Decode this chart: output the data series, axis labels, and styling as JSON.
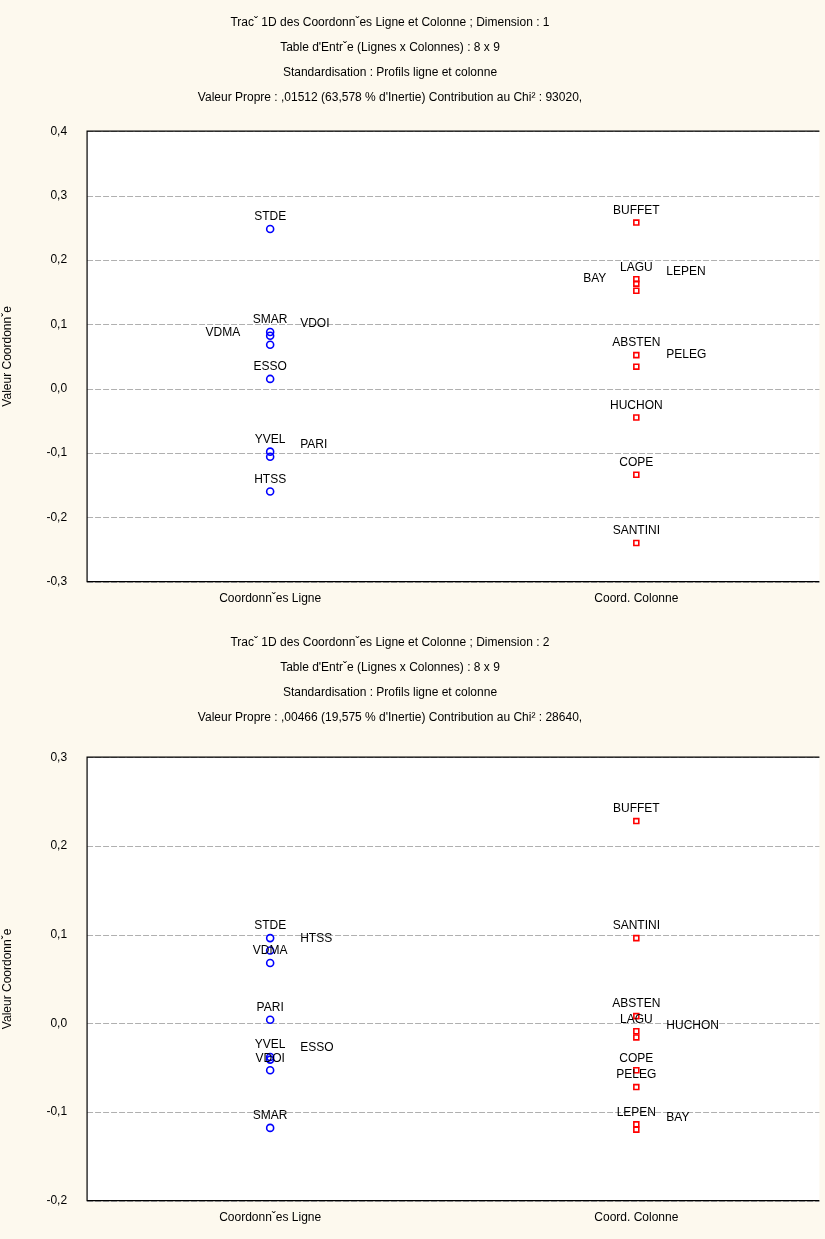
{
  "chart_data": [
    {
      "type": "scatter",
      "title": "Tracˇ 1D des Coordonnˇes Ligne et Colonne ; Dimension :  1",
      "subtitle": "Table d'Entrˇe (Lignes x Colonnes) : 8 x 9\nStandardisation : Profils ligne et colonne\nValeur Propre : ,01512 (63,578  % d'Inertie) Contribution au Chi² : 93020,",
      "ylabel": "Valeur Coordonnˇe",
      "categories": [
        "Coordonnˇes Ligne",
        "Coord. Colonne"
      ],
      "series": [
        {
          "color": "#0000ff",
          "marker": "circle",
          "x": [
            "Coordonnˇes Ligne",
            "Coordonnˇes Ligne",
            "Coordonnˇes Ligne",
            "Coordonnˇes Ligne",
            "Coordonnˇes Ligne",
            "Coordonnˇes Ligne",
            "Coordonnˇes Ligne",
            "Coordonnˇes Ligne"
          ],
          "values": [
            0.248,
            0.088,
            0.082,
            0.068,
            0.015,
            -0.098,
            -0.106,
            -0.16
          ]
        },
        {
          "color": "#ff0000",
          "marker": "square",
          "x": [
            "Coord. Colonne",
            "Coord. Colonne",
            "Coord. Colonne",
            "Coord. Colonne",
            "Coord. Colonne",
            "Coord. Colonne",
            "Coord. Colonne",
            "Coord. Colonne",
            "Coord. Colonne"
          ],
          "values": [
            0.258,
            0.17,
            0.163,
            0.152,
            0.052,
            0.034,
            -0.045,
            -0.134,
            -0.24
          ]
        }
      ],
      "ylim": [
        -0.3,
        0.4
      ],
      "yticks": [
        {
          "value": -0.3,
          "label": "-0,3"
        },
        {
          "value": -0.2,
          "label": "-0,2"
        },
        {
          "value": -0.1,
          "label": "-0,1"
        },
        {
          "value": 0,
          "label": "0,0"
        },
        {
          "value": 0.1,
          "label": "0,1"
        },
        {
          "value": 0.2,
          "label": "0,2"
        },
        {
          "value": 0.3,
          "label": "0,3"
        },
        {
          "value": 0.4,
          "label": "0,4"
        }
      ],
      "grid": "y",
      "legend": false,
      "annotations": [
        {
          "text": "STDE",
          "x": "Coordonnˇes Ligne",
          "y": 0.248
        },
        {
          "text": "SMAR",
          "x": "Coordonnˇes Ligne",
          "y": 0.088
        },
        {
          "text": "VDOI",
          "x": "Coordonnˇes Ligne",
          "y": 0.082
        },
        {
          "text": "VDMA",
          "x": "Coordonnˇes Ligne",
          "y": 0.068
        },
        {
          "text": "ESSO",
          "x": "Coordonnˇes Ligne",
          "y": 0.015
        },
        {
          "text": "YVEL",
          "x": "Coordonnˇes Ligne",
          "y": -0.098
        },
        {
          "text": "PARI",
          "x": "Coordonnˇes Ligne",
          "y": -0.106
        },
        {
          "text": "HTSS",
          "x": "Coordonnˇes Ligne",
          "y": -0.16
        },
        {
          "text": "BUFFET",
          "x": "Coord. Colonne",
          "y": 0.258
        },
        {
          "text": "LAGU",
          "x": "Coord. Colonne",
          "y": 0.17
        },
        {
          "text": "LEPEN",
          "x": "Coord. Colonne",
          "y": 0.163
        },
        {
          "text": "BAY",
          "x": "Coord. Colonne",
          "y": 0.152
        },
        {
          "text": "ABSTEN",
          "x": "Coord. Colonne",
          "y": 0.052
        },
        {
          "text": "PELEG",
          "x": "Coord. Colonne",
          "y": 0.034
        },
        {
          "text": "HUCHON",
          "x": "Coord. Colonne",
          "y": -0.045
        },
        {
          "text": "COPE",
          "x": "Coord. Colonne",
          "y": -0.134
        },
        {
          "text": "SANTINI",
          "x": "Coord. Colonne",
          "y": -0.24
        }
      ]
    },
    {
      "type": "scatter",
      "title": "Tracˇ 1D des Coordonnˇes Ligne et Colonne ; Dimension :  2",
      "subtitle": "Table d'Entrˇe (Lignes x Colonnes) : 8 x 9\nStandardisation : Profils ligne et colonne\nValeur Propre : ,00466 (19,575  % d'Inertie) Contribution au Chi² : 28640,",
      "ylabel": "Valeur Coordonnˇe",
      "categories": [
        "Coordonnˇes Ligne",
        "Coord. Colonne"
      ],
      "series": [
        {
          "color": "#0000ff",
          "marker": "circle",
          "x": [
            "Coordonnˇes Ligne",
            "Coordonnˇes Ligne",
            "Coordonnˇes Ligne",
            "Coordonnˇes Ligne",
            "Coordonnˇes Ligne",
            "Coordonnˇes Ligne",
            "Coordonnˇes Ligne",
            "Coordonnˇes Ligne"
          ],
          "values": [
            0.096,
            0.082,
            0.068,
            0.004,
            -0.038,
            -0.041,
            -0.053,
            -0.118
          ]
        },
        {
          "color": "#ff0000",
          "marker": "square",
          "x": [
            "Coord. Colonne",
            "Coord. Colonne",
            "Coord. Colonne",
            "Coord. Colonne",
            "Coord. Colonne",
            "Coord. Colonne",
            "Coord. Colonne",
            "Coord. Colonne",
            "Coord. Colonne"
          ],
          "values": [
            0.228,
            0.096,
            0.008,
            -0.009,
            -0.016,
            -0.053,
            -0.072,
            -0.114,
            -0.12
          ]
        }
      ],
      "ylim": [
        -0.2,
        0.3
      ],
      "yticks": [
        {
          "value": -0.2,
          "label": "-0,2"
        },
        {
          "value": -0.1,
          "label": "-0,1"
        },
        {
          "value": 0,
          "label": "0,0"
        },
        {
          "value": 0.1,
          "label": "0,1"
        },
        {
          "value": 0.2,
          "label": "0,2"
        },
        {
          "value": 0.3,
          "label": "0,3"
        }
      ],
      "grid": "y",
      "legend": false,
      "annotations": [
        {
          "text": "STDE",
          "x": "Coordonnˇes Ligne",
          "y": 0.096
        },
        {
          "text": "HTSS",
          "x": "Coordonnˇes Ligne",
          "y": 0.082
        },
        {
          "text": "VDMA",
          "x": "Coordonnˇes Ligne",
          "y": 0.068
        },
        {
          "text": "PARI",
          "x": "Coordonnˇes Ligne",
          "y": 0.004
        },
        {
          "text": "YVEL",
          "x": "Coordonnˇes Ligne",
          "y": -0.038
        },
        {
          "text": "ESSO",
          "x": "Coordonnˇes Ligne",
          "y": -0.041
        },
        {
          "text": "VDOI",
          "x": "Coordonnˇes Ligne",
          "y": -0.053
        },
        {
          "text": "SMAR",
          "x": "Coordonnˇes Ligne",
          "y": -0.118
        },
        {
          "text": "BUFFET",
          "x": "Coord. Colonne",
          "y": 0.228
        },
        {
          "text": "SANTINI",
          "x": "Coord. Colonne",
          "y": 0.096
        },
        {
          "text": "ABSTEN",
          "x": "Coord. Colonne",
          "y": 0.008
        },
        {
          "text": "LAGU",
          "x": "Coord. Colonne",
          "y": -0.009
        },
        {
          "text": "HUCHON",
          "x": "Coord. Colonne",
          "y": -0.016
        },
        {
          "text": "COPE",
          "x": "Coord. Colonne",
          "y": -0.053
        },
        {
          "text": "PELEG",
          "x": "Coord. Colonne",
          "y": -0.072
        },
        {
          "text": "LEPEN",
          "x": "Coord. Colonne",
          "y": -0.114
        },
        {
          "text": "BAY",
          "x": "Coord. Colonne",
          "y": -0.12
        }
      ]
    }
  ]
}
